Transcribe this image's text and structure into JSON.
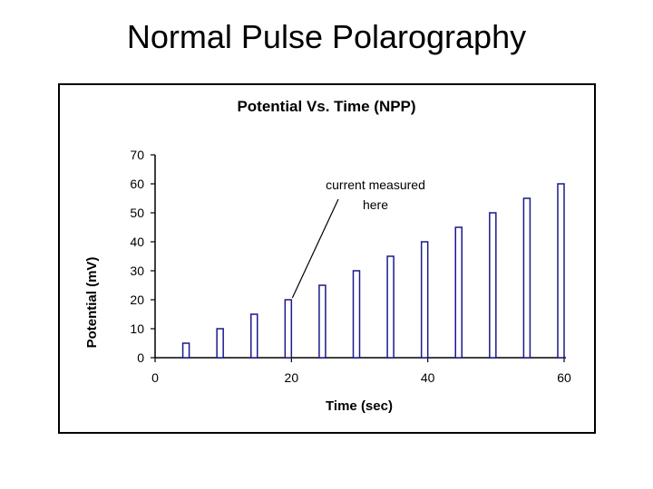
{
  "slide": {
    "title": "Normal Pulse Polarography"
  },
  "colors": {
    "bar_stroke": "#1a1a8c",
    "axis": "#000000",
    "text": "#000000"
  },
  "chart_data": {
    "type": "bar",
    "title": "Potential Vs. Time (NPP)",
    "xlabel": "Time (sec)",
    "ylabel": "Potential (mV)",
    "xlim": [
      0,
      60
    ],
    "ylim": [
      0,
      70
    ],
    "xticks": [
      0,
      20,
      40,
      60
    ],
    "yticks": [
      0,
      10,
      20,
      30,
      40,
      50,
      60,
      70
    ],
    "x": [
      5,
      10,
      15,
      20,
      25,
      30,
      35,
      40,
      45,
      50,
      55,
      60
    ],
    "values": [
      5,
      10,
      15,
      20,
      25,
      30,
      35,
      40,
      45,
      50,
      55,
      60
    ],
    "grid": false,
    "legend": "none",
    "annotation": {
      "lines": [
        "current measured",
        "here"
      ],
      "points_to_x": 20,
      "points_to_y": 20
    }
  }
}
